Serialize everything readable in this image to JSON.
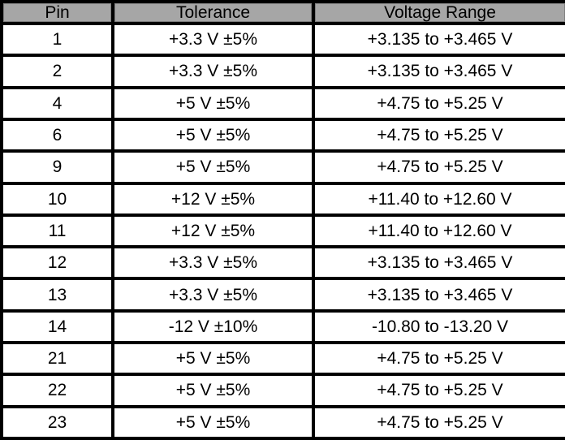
{
  "table": {
    "name": "Pin voltage tolerance table",
    "header_bg": "#a6a6a6",
    "border_color": "#000000",
    "columns": [
      "Pin",
      "Tolerance",
      "Voltage Range"
    ],
    "rows": [
      {
        "pin": "1",
        "tolerance": "+3.3 V ±5%",
        "voltage_range": "+3.135 to +3.465 V"
      },
      {
        "pin": "2",
        "tolerance": "+3.3 V ±5%",
        "voltage_range": "+3.135 to +3.465 V"
      },
      {
        "pin": "4",
        "tolerance": "+5 V ±5%",
        "voltage_range": "+4.75 to +5.25 V"
      },
      {
        "pin": "6",
        "tolerance": "+5 V ±5%",
        "voltage_range": "+4.75 to +5.25 V"
      },
      {
        "pin": "9",
        "tolerance": "+5 V ±5%",
        "voltage_range": "+4.75 to +5.25 V"
      },
      {
        "pin": "10",
        "tolerance": "+12 V ±5%",
        "voltage_range": "+11.40 to +12.60 V"
      },
      {
        "pin": "11",
        "tolerance": "+12 V ±5%",
        "voltage_range": "+11.40 to +12.60 V"
      },
      {
        "pin": "12",
        "tolerance": "+3.3 V ±5%",
        "voltage_range": "+3.135 to +3.465 V"
      },
      {
        "pin": "13",
        "tolerance": "+3.3 V ±5%",
        "voltage_range": "+3.135 to +3.465 V"
      },
      {
        "pin": "14",
        "tolerance": "-12 V ±10%",
        "voltage_range": "-10.80 to -13.20 V"
      },
      {
        "pin": "21",
        "tolerance": "+5 V ±5%",
        "voltage_range": "+4.75 to +5.25 V"
      },
      {
        "pin": "22",
        "tolerance": "+5 V ±5%",
        "voltage_range": "+4.75 to +5.25 V"
      },
      {
        "pin": "23",
        "tolerance": "+5 V ±5%",
        "voltage_range": "+4.75 to +5.25 V"
      }
    ]
  }
}
